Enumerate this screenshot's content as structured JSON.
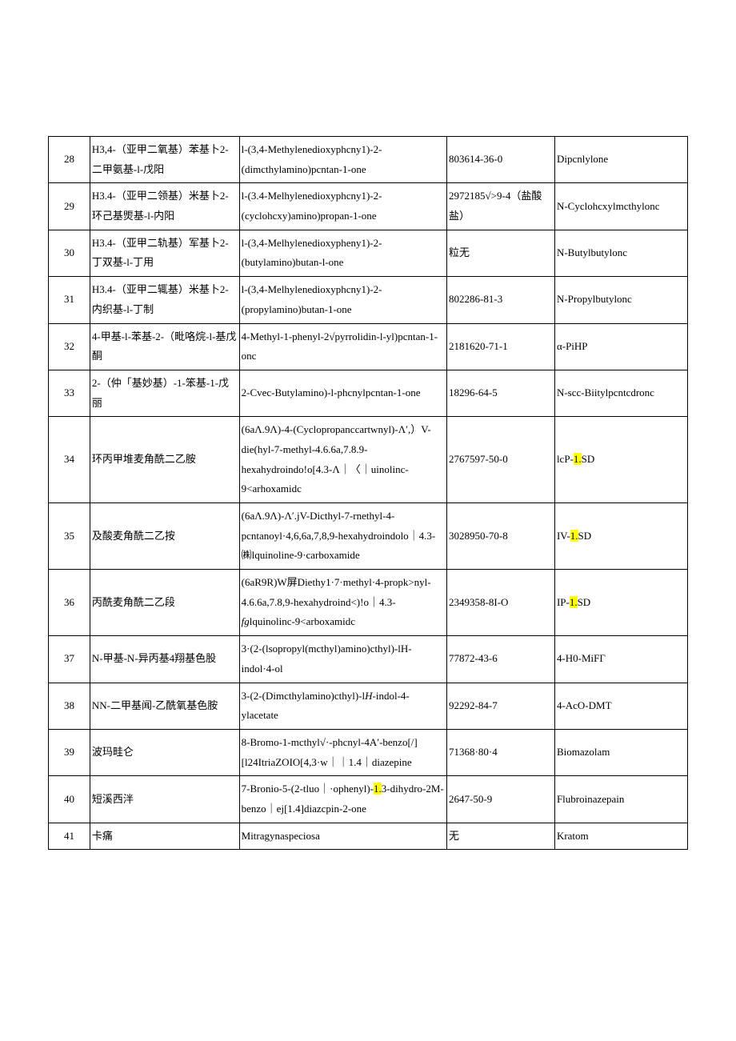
{
  "table": {
    "highlight_color": "#ffff00",
    "font_size": 13,
    "border_color": "#000000",
    "background_color": "#ffffff",
    "columns": [
      "num",
      "cn_name",
      "en_name",
      "cas",
      "common_name"
    ],
    "rows": [
      {
        "num": "28",
        "cn": "H3,4-（亚甲二氧基）苯基卜2-二甲氨基-l-戊阳",
        "en": "l-(3,4-Methylenedioxyphcny1)-2-(dimcthylamino)pcntan-1-one",
        "cas": "803614-36-0",
        "common": "Dipcnlylone"
      },
      {
        "num": "29",
        "cn": "H3.4-（亚甲二领基）米基卜2-环己基煚基-l-内阳",
        "en": "l-(3.4-Melhylenedioxyphcny1)-2-(cyclohcxy)amino)propan-1-one",
        "cas": "2972185√>9-4（盐酸盐）",
        "common": "N-Cyclohcxylmcthylonc"
      },
      {
        "num": "30",
        "cn": "H3.4-（亚甲二轨基）军基卜2-丁双基-l-丁用",
        "en": "l-(3,4-Melhylenedioxypheny1)-2-(butylamino)butan-l-one",
        "cas": "粒无",
        "common": "N-Butylbutylonc"
      },
      {
        "num": "31",
        "cn": "H3.4-（亚甲二辄基）米基卜2-内织基-l-丁制",
        "en": "l-(3,4-Melhylenedioxyphcny1)-2-(propylamino)butan-1-one",
        "cas": "802286-81-3",
        "common": "N-Propylbutylonc"
      },
      {
        "num": "32",
        "cn": "4-甲基-l-苯基-2-（毗咯烷-l-基戊酮",
        "en": "4-Methyl-1-phenyl-2√pyrrolidin-l-yl)pcntan-1-onc",
        "cas": "2181620-71-1",
        "common": "α-PiHP"
      },
      {
        "num": "33",
        "cn": "2-（仲「基妙基）-1-笨基-1-戊丽",
        "en": "2-Cvec-Butylamino)-l-phcnylpcntan-1-one",
        "cas": "18296-64-5",
        "common": "N-scc-Biitylpcntcdronc"
      },
      {
        "num": "34",
        "cn": "环丙甲堆麦角酰二乙胺",
        "en": "(6aΛ.9Λ)-4-(Cyclopropanccartwnyl)-Λʹ,）V-die(hyl-7-methyl-4.6.6a,7.8.9-hexahydroindo!o[4.3-Λ｜〈｜uinolinc-9<arhoxamidc",
        "cas": "2767597-50-0",
        "common_pre": "lcP-",
        "common_hl": "1.",
        "common_post": "SD"
      },
      {
        "num": "35",
        "cn": "及酸麦角酰二乙按",
        "en": "(6aΛ.9Λ)-Λʹ.jV-Dicthyl-7-rnethyl-4-pcntanoyl·4,6,6a,7,8,9-hexahydroindolo｜4.3-㈱lquinoline-9·carboxamide",
        "cas": "3028950-70-8",
        "common_pre": "IV-",
        "common_hl": "1.",
        "common_post": "SD"
      },
      {
        "num": "36",
        "cn": "丙酰麦角酰二乙段",
        "en_pre": "(6aR9R)W屏Diethy1·7·methyl·4-propk>nyl-4.6.6a,7.8,9-hexahydroind<)!o｜4.3-",
        "en_ital": "fg",
        "en_post": "lquinolinc-9<arboxamidc",
        "cas": "2349358-8I-O",
        "common_pre": "IP-",
        "common_hl": "1.",
        "common_post": "SD"
      },
      {
        "num": "37",
        "cn": "N-甲基-N-异丙基4翔基色股",
        "en": "3·(2-(lsopropyl(mcthyl)amino)cthyl)-lH-indol·4-ol",
        "cas": "77872-43-6",
        "common": "4-H0-MiFГ"
      },
      {
        "num": "38",
        "cn": "NN-二甲基闻-乙酰氧基色胺",
        "en_pre": "3-(2-(Dimcthylamino)cthyl)-l",
        "en_ital": "H",
        "en_post": "-indol-4-ylacetate",
        "cas": "92292-84-7",
        "common": "4-AcO-DMT"
      },
      {
        "num": "39",
        "cn": "波玛畦仑",
        "en": "8-Bromo-1-mcthyl√·-phcnyl-4Aʹ-benzo[/][l24ItriaZOIO[4,3·w｜｜1.4｜diazepine",
        "cas": "71368·80·4",
        "common": "Biomazolam"
      },
      {
        "num": "40",
        "cn": "短溪西泮",
        "en_pre": "7-Bronio-5-(2-tluo｜·ophenyl)-",
        "en_hl": "1.",
        "en_post": "3-dihydro-2M-benzo｜ej[1.4]diazcpin-2-one",
        "cas": "2647-50-9",
        "common": "Flubroinazepain"
      },
      {
        "num": "41",
        "cn": "卡痛",
        "en": "Mitragynaspeciosa",
        "cas": "无",
        "common": "Kratom"
      }
    ]
  }
}
